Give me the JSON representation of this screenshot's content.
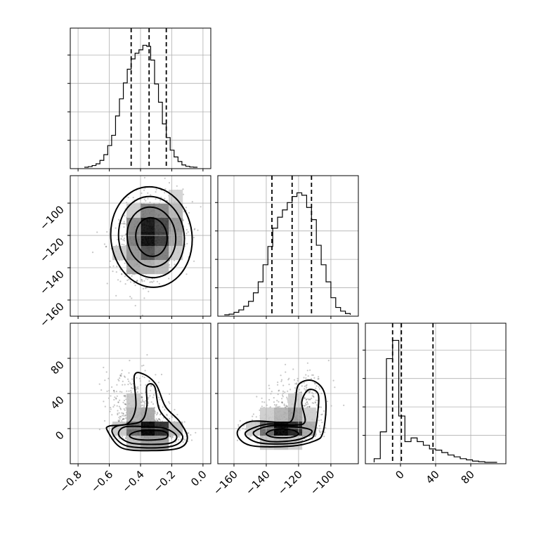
{
  "chart_data": {
    "type": "corner",
    "parameters": [
      {
        "index": 0,
        "range": [
          -0.85,
          0.05
        ],
        "ticks": [
          -0.8,
          -0.6,
          -0.4,
          -0.2,
          0.0
        ],
        "tick_labels": [
          "−0.8",
          "−0.6",
          "−0.4",
          "−0.2",
          "0.0"
        ],
        "quantiles": [
          -0.46,
          -0.345,
          -0.235
        ]
      },
      {
        "index": 1,
        "range": [
          -170,
          -83
        ],
        "ticks": [
          -160,
          -140,
          -120,
          -100
        ],
        "tick_labels": [
          "−160",
          "−140",
          "−120",
          "−100"
        ],
        "quantiles": [
          -136.5,
          -124.0,
          -112.0
        ]
      },
      {
        "index": 2,
        "range": [
          -40,
          120
        ],
        "ticks": [
          0,
          40,
          80
        ],
        "tick_labels": [
          "0",
          "40",
          "80"
        ],
        "quantiles": [
          -9,
          1,
          37
        ]
      }
    ],
    "histograms": [
      {
        "param": 0,
        "bin_edges": [
          -0.76,
          -0.735,
          -0.71,
          -0.685,
          -0.66,
          -0.635,
          -0.61,
          -0.585,
          -0.56,
          -0.535,
          -0.51,
          -0.485,
          -0.46,
          -0.435,
          -0.41,
          -0.385,
          -0.36,
          -0.335,
          -0.31,
          -0.285,
          -0.26,
          -0.235,
          -0.21,
          -0.185,
          -0.16,
          -0.135,
          -0.11,
          -0.085,
          -0.06,
          -0.035
        ],
        "counts": [
          0.0,
          0.005,
          0.015,
          0.03,
          0.06,
          0.11,
          0.19,
          0.28,
          0.45,
          0.6,
          0.74,
          0.86,
          0.95,
          1.0,
          1.03,
          1.07,
          1.06,
          0.94,
          0.73,
          0.57,
          0.38,
          0.26,
          0.15,
          0.09,
          0.05,
          0.02,
          0.008,
          0.002,
          0.0
        ]
      },
      {
        "param": 1,
        "bin_edges": [
          -166,
          -163,
          -160,
          -157,
          -154,
          -151,
          -148,
          -145,
          -142,
          -139,
          -136,
          -133,
          -130,
          -127,
          -124,
          -121,
          -118,
          -115,
          -112,
          -109,
          -106,
          -103,
          -100,
          -97,
          -94,
          -91,
          -88
        ],
        "counts": [
          0.0,
          0.005,
          0.02,
          0.04,
          0.07,
          0.11,
          0.18,
          0.27,
          0.41,
          0.56,
          0.71,
          0.8,
          0.86,
          0.92,
          0.97,
          1.0,
          0.98,
          0.88,
          0.78,
          0.57,
          0.41,
          0.27,
          0.14,
          0.06,
          0.03,
          0.01
        ]
      },
      {
        "param": 2,
        "bin_edges": [
          -30,
          -23,
          -16,
          -9,
          -2,
          5,
          12,
          19,
          26,
          33,
          40,
          47,
          54,
          61,
          68,
          75,
          82,
          89,
          96,
          103,
          110
        ],
        "counts": [
          0.03,
          0.25,
          0.85,
          1.0,
          0.38,
          0.17,
          0.2,
          0.17,
          0.14,
          0.11,
          0.1,
          0.08,
          0.06,
          0.045,
          0.03,
          0.02,
          0.01,
          0.005,
          0.0,
          0.0
        ]
      }
    ],
    "pairs": [
      {
        "x_param": 0,
        "y_param": 1,
        "samples": {
          "type": "gaussian",
          "center": [
            -0.33,
            -121
          ],
          "sd": [
            0.1,
            12
          ],
          "rho": 0.25
        },
        "contours": [
          {
            "rx": 1.0
          },
          {
            "rx": 1.55
          },
          {
            "rx": 2.1
          },
          {
            "rx": 2.6
          }
        ]
      },
      {
        "x_param": 0,
        "y_param": 2,
        "samples": {
          "type": "skewed",
          "base_center": [
            -0.33,
            -5
          ],
          "sd": [
            0.09,
            6
          ],
          "tail_direction": [
            -0.15,
            55
          ]
        },
        "contours": [
          {
            "points": [
              [
                -0.47,
                -8
              ],
              [
                -0.43,
                -12
              ],
              [
                -0.33,
                -13
              ],
              [
                -0.24,
                -11
              ],
              [
                -0.23,
                -5
              ],
              [
                -0.3,
                -2
              ],
              [
                -0.42,
                -3
              ]
            ]
          },
          {
            "points": [
              [
                -0.54,
                -7
              ],
              [
                -0.47,
                -16
              ],
              [
                -0.33,
                -18
              ],
              [
                -0.2,
                -16
              ],
              [
                -0.17,
                -8
              ],
              [
                -0.24,
                0
              ],
              [
                -0.35,
                2
              ],
              [
                -0.5,
                2
              ]
            ]
          },
          {
            "points": [
              [
                -0.58,
                -5
              ],
              [
                -0.5,
                -19
              ],
              [
                -0.33,
                -22
              ],
              [
                -0.18,
                -19
              ],
              [
                -0.13,
                -9
              ],
              [
                -0.2,
                5
              ],
              [
                -0.28,
                22
              ],
              [
                -0.31,
                48
              ],
              [
                -0.36,
                48
              ],
              [
                -0.36,
                25
              ],
              [
                -0.4,
                8
              ],
              [
                -0.55,
                3
              ]
            ]
          },
          {
            "points": [
              [
                -0.61,
                -3
              ],
              [
                -0.52,
                -22
              ],
              [
                -0.33,
                -25
              ],
              [
                -0.15,
                -22
              ],
              [
                -0.1,
                -10
              ],
              [
                -0.15,
                8
              ],
              [
                -0.24,
                25
              ],
              [
                -0.3,
                50
              ],
              [
                -0.38,
                62
              ],
              [
                -0.44,
                60
              ],
              [
                -0.43,
                25
              ],
              [
                -0.48,
                6
              ],
              [
                -0.6,
                3
              ]
            ]
          }
        ]
      },
      {
        "x_param": 1,
        "y_param": 2,
        "samples": {
          "type": "skewed",
          "base_center": [
            -130,
            -3
          ],
          "sd": [
            9,
            6
          ],
          "tail_direction": [
            12,
            55
          ]
        },
        "contours": [
          {
            "points": [
              [
                -140,
                -6
              ],
              [
                -135,
                -10
              ],
              [
                -125,
                -10
              ],
              [
                -120,
                -6
              ],
              [
                -125,
                -1
              ],
              [
                -135,
                -1
              ]
            ]
          },
          {
            "points": [
              [
                -148,
                -5
              ],
              [
                -140,
                -14
              ],
              [
                -125,
                -14
              ],
              [
                -115,
                -9
              ],
              [
                -112,
                -2
              ],
              [
                -122,
                2
              ],
              [
                -138,
                3
              ]
            ]
          },
          {
            "points": [
              [
                -153,
                -5
              ],
              [
                -145,
                -16
              ],
              [
                -125,
                -17
              ],
              [
                -113,
                -12
              ],
              [
                -110,
                -4
              ],
              [
                -108,
                20
              ],
              [
                -108,
                40
              ],
              [
                -114,
                44
              ],
              [
                -118,
                30
              ],
              [
                -116,
                8
              ],
              [
                -123,
                4
              ],
              [
                -140,
                5
              ]
            ]
          },
          {
            "points": [
              [
                -158,
                -5
              ],
              [
                -150,
                -19
              ],
              [
                -125,
                -20
              ],
              [
                -110,
                -14
              ],
              [
                -105,
                -5
              ],
              [
                -103,
                25
              ],
              [
                -105,
                45
              ],
              [
                -112,
                55
              ],
              [
                -120,
                50
              ],
              [
                -122,
                30
              ],
              [
                -124,
                10
              ],
              [
                -130,
                7
              ],
              [
                -150,
                8
              ]
            ]
          }
        ]
      }
    ],
    "density_cells": {
      "x0_x1": "grayscale 2D histogram",
      "note": ""
    }
  }
}
